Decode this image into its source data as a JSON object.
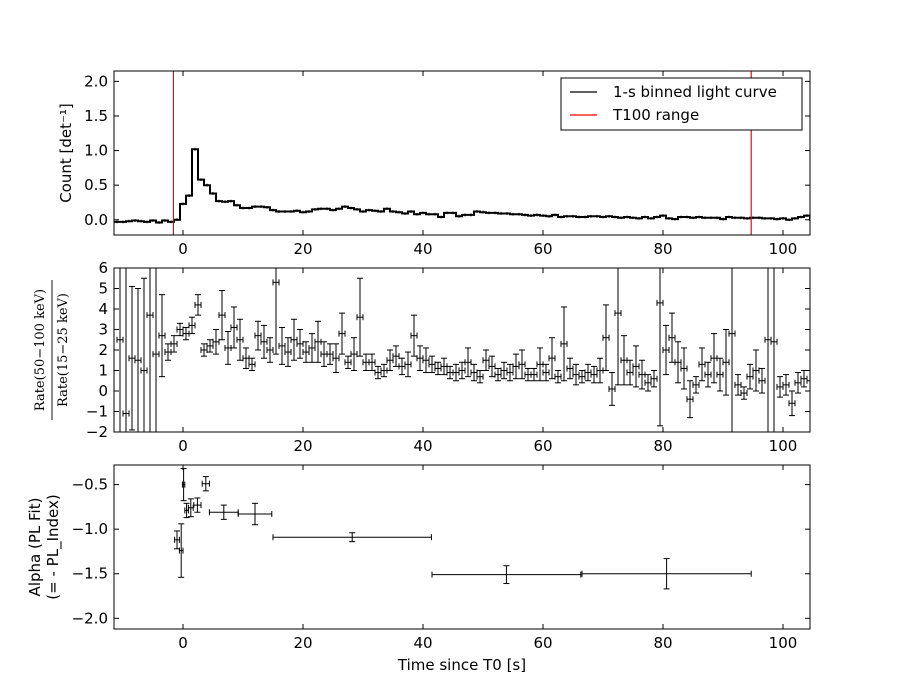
{
  "chart_data": [
    {
      "type": "line",
      "ylabel": "Count [det⁻¹]",
      "xlim": [
        -11.5,
        104.5
      ],
      "ylim": [
        -0.22,
        2.15
      ],
      "xticks": [
        0,
        20,
        40,
        60,
        80,
        100
      ],
      "yticks": [
        0.0,
        0.5,
        1.0,
        1.5,
        2.0
      ],
      "ytick_format": 1,
      "legend": {
        "position": "top-right",
        "entries": [
          {
            "label": "1-s binned light curve",
            "color": "#000000"
          },
          {
            "label": "T100 range",
            "color": "#ff0000"
          }
        ]
      },
      "vlines": [
        {
          "x": -1.6,
          "color": "#ff0000"
        },
        {
          "x": 94.7,
          "color": "#ff0000"
        }
      ],
      "series": [
        {
          "name": "1-s binned light curve",
          "x_start": -11.5,
          "bin_width": 1,
          "values": [
            -0.03,
            -0.03,
            -0.02,
            -0.01,
            -0.02,
            -0.03,
            -0.01,
            -0.04,
            -0.01,
            -0.03,
            0.0,
            0.23,
            0.35,
            1.02,
            0.58,
            0.5,
            0.38,
            0.27,
            0.26,
            0.27,
            0.21,
            0.17,
            0.17,
            0.19,
            0.19,
            0.18,
            0.14,
            0.12,
            0.12,
            0.12,
            0.13,
            0.11,
            0.12,
            0.15,
            0.16,
            0.16,
            0.14,
            0.16,
            0.19,
            0.17,
            0.15,
            0.12,
            0.14,
            0.13,
            0.12,
            0.16,
            0.12,
            0.11,
            0.09,
            0.12,
            0.08,
            0.1,
            0.08,
            0.08,
            0.04,
            0.1,
            0.1,
            0.05,
            0.07,
            0.07,
            0.12,
            0.11,
            0.1,
            0.1,
            0.09,
            0.09,
            0.08,
            0.08,
            0.07,
            0.06,
            0.07,
            0.06,
            0.05,
            0.07,
            0.04,
            0.05,
            0.05,
            0.04,
            0.04,
            0.05,
            0.05,
            0.04,
            0.05,
            0.04,
            0.03,
            0.04,
            0.03,
            0.02,
            0.04,
            0.02,
            0.04,
            0.06,
            0.02,
            0.01,
            0.04,
            0.04,
            0.03,
            0.04,
            0.03,
            0.03,
            0.03,
            0.01,
            0.04,
            0.03,
            0.03,
            0.02,
            0.03,
            0.03,
            0.02,
            0.02,
            0.01,
            0.02,
            0.0,
            0.02,
            0.04,
            0.06,
            0.0
          ],
          "error": 0.02
        }
      ]
    },
    {
      "type": "scatter",
      "ylabel_num": "Rate(50−100 keV)",
      "ylabel_den": "Rate(15−25 keV)",
      "xlim": [
        -11.5,
        104.5
      ],
      "ylim": [
        -2,
        6
      ],
      "xticks": [
        0,
        20,
        40,
        60,
        80,
        100
      ],
      "yticks": [
        -2,
        -1,
        0,
        1,
        2,
        3,
        4,
        5,
        6
      ],
      "ytick_format": 0,
      "series": [
        {
          "name": "",
          "x": [
            -10.5,
            -9.5,
            -8.5,
            -7.5,
            -6.5,
            -5.5,
            -4.5,
            -3.5,
            -2.5,
            -1.5,
            -0.5,
            0.5,
            1.5,
            2.5,
            3.5,
            4.5,
            5.5,
            6.5,
            7.5,
            8.5,
            9.5,
            10.5,
            11.5,
            12.5,
            13.5,
            14.5,
            15.5,
            16.5,
            17.5,
            18.5,
            19.5,
            20.5,
            21.5,
            22.5,
            23.5,
            24.5,
            25.5,
            26.5,
            27.5,
            28.5,
            29.5,
            30.5,
            31.5,
            32.5,
            33.5,
            34.5,
            35.5,
            36.5,
            37.5,
            38.5,
            39.5,
            40.5,
            41.5,
            42.5,
            43.5,
            44.5,
            45.5,
            46.5,
            47.5,
            48.5,
            49.5,
            50.5,
            51.5,
            52.5,
            53.5,
            54.5,
            55.5,
            56.5,
            57.5,
            58.5,
            59.5,
            60.5,
            61.5,
            62.5,
            63.5,
            64.5,
            65.5,
            66.5,
            67.5,
            68.5,
            69.5,
            70.5,
            71.5,
            72.5,
            73.5,
            74.5,
            75.5,
            76.5,
            77.5,
            78.5,
            79.5,
            80.5,
            81.5,
            82.5,
            83.5,
            84.5,
            85.5,
            86.5,
            87.5,
            88.5,
            89.5,
            90.5,
            91.5,
            92.5,
            93.5,
            94.5,
            95.5,
            96.5,
            97.5,
            98.5,
            99.5,
            100.5,
            101.5,
            102.5,
            103.5,
            104.5
          ],
          "y": [
            2.5,
            -1.1,
            1.6,
            1.5,
            1.0,
            3.7,
            1.8,
            2.7,
            1.9,
            2.3,
            3.0,
            2.8,
            3.2,
            4.2,
            2.0,
            2.2,
            2.4,
            3.7,
            2.1,
            3.1,
            2.5,
            1.6,
            1.3,
            2.7,
            2.4,
            2.0,
            5.3,
            2.2,
            1.9,
            2.5,
            2.3,
            1.9,
            2.1,
            2.4,
            1.8,
            1.8,
            1.6,
            2.8,
            1.4,
            1.8,
            3.6,
            1.4,
            1.4,
            0.9,
            1.0,
            1.5,
            1.7,
            1.2,
            1.3,
            2.7,
            1.6,
            1.5,
            1.3,
            1.1,
            1.2,
            0.9,
            0.9,
            1.0,
            1.4,
            0.9,
            0.7,
            1.5,
            1.2,
            0.8,
            1.0,
            0.9,
            1.2,
            1.3,
            0.8,
            0.8,
            1.3,
            0.9,
            1.6,
            0.7,
            2.3,
            1.1,
            0.8,
            0.7,
            0.9,
            0.8,
            1.0,
            2.6,
            0.1,
            3.8,
            1.5,
            0.9,
            1.2,
            0.8,
            0.4,
            0.6,
            4.3,
            2.0,
            2.6,
            1.4,
            1.1,
            -0.4,
            0.3,
            1.3,
            0.8,
            1.6,
            0.8,
            1.4,
            2.8,
            0.3,
            -0.1,
            0.7,
            1.0,
            0.5,
            2.5,
            2.4,
            0.2,
            0.3,
            -0.6,
            0.4,
            0.6,
            0.5
          ],
          "yerr": [
            8,
            8,
            3.5,
            3.5,
            4.5,
            6,
            9,
            2,
            0.4,
            0.4,
            0.3,
            0.3,
            0.4,
            0.5,
            0.3,
            0.3,
            0.6,
            1.2,
            0.8,
            1.0,
            1.0,
            0.5,
            0.3,
            0.7,
            0.8,
            0.6,
            3.5,
            0.9,
            0.7,
            1.0,
            0.7,
            0.5,
            0.7,
            1.0,
            0.6,
            0.5,
            0.7,
            1.0,
            0.3,
            0.8,
            1.9,
            0.4,
            0.4,
            0.3,
            0.3,
            0.5,
            0.5,
            0.4,
            0.6,
            1.0,
            0.6,
            0.6,
            0.4,
            0.3,
            0.4,
            0.3,
            0.4,
            0.4,
            0.7,
            0.4,
            0.3,
            0.5,
            0.5,
            0.3,
            0.4,
            0.4,
            0.6,
            0.7,
            0.3,
            0.3,
            0.8,
            0.4,
            1.0,
            0.3,
            1.8,
            0.5,
            0.5,
            0.3,
            0.4,
            0.4,
            0.6,
            1.6,
            0.8,
            3.5,
            1.2,
            0.6,
            1.0,
            0.7,
            0.4,
            0.4,
            6,
            1.2,
            1.2,
            1.0,
            1.0,
            0.9,
            0.4,
            0.8,
            0.6,
            1.2,
            0.8,
            1.6,
            5,
            0.5,
            0.3,
            0.6,
            1.0,
            0.6,
            6,
            6,
            0.5,
            0.5,
            0.6,
            0.5,
            0.4,
            0.5
          ]
        }
      ]
    },
    {
      "type": "scatter",
      "ylabel": [
        "Alpha (PL Fit)",
        "(= - PL_Index)"
      ],
      "xlabel": "Time since T0 [s]",
      "xlim": [
        -11.5,
        104.5
      ],
      "ylim": [
        -2.12,
        -0.28
      ],
      "xticks": [
        0,
        20,
        40,
        60,
        80,
        100
      ],
      "yticks": [
        -2.0,
        -1.5,
        -1.0,
        -0.5
      ],
      "ytick_format": 1,
      "series": [
        {
          "name": "",
          "x": [
            -1.0,
            -0.3,
            0.1,
            0.6,
            1.3,
            2.4,
            3.8,
            6.8,
            12.0,
            28.2,
            53.9,
            80.6
          ],
          "xerr_lo": [
            0.4,
            0.3,
            0.2,
            0.3,
            0.4,
            0.6,
            0.6,
            2.4,
            2.8,
            13.2,
            12.4,
            14.1
          ],
          "xerr_hi": [
            0.4,
            0.3,
            0.2,
            0.3,
            0.4,
            0.6,
            0.6,
            2.4,
            2.8,
            13.2,
            12.4,
            14.1
          ],
          "y": [
            -1.12,
            -1.24,
            -0.5,
            -0.79,
            -0.76,
            -0.73,
            -0.49,
            -0.81,
            -0.83,
            -1.09,
            -1.51,
            -1.5
          ],
          "yerr": [
            0.1,
            0.3,
            0.18,
            0.08,
            0.1,
            0.08,
            0.08,
            0.08,
            0.12,
            0.05,
            0.1,
            0.17
          ]
        }
      ]
    }
  ]
}
